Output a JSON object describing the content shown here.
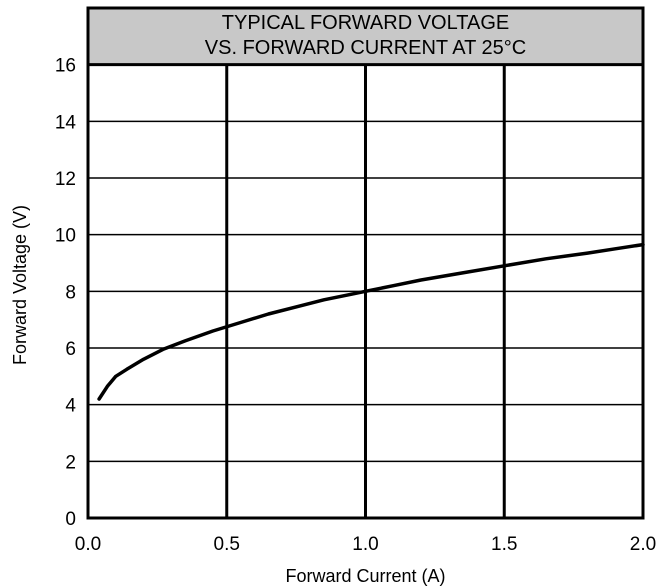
{
  "chart_data": {
    "type": "line",
    "title_lines": [
      "TYPICAL FORWARD VOLTAGE",
      "VS. FORWARD CURRENT AT 25°C"
    ],
    "xlabel": "Forward Current (A)",
    "ylabel": "Forward Voltage (V)",
    "xlim": [
      0.0,
      2.0
    ],
    "ylim": [
      0,
      18
    ],
    "x_ticks": [
      0.0,
      0.5,
      1.0,
      1.5,
      2.0
    ],
    "x_tick_labels": [
      "0.0",
      "0.5",
      "1.0",
      "1.5",
      "2.0"
    ],
    "y_ticks": [
      0,
      2,
      4,
      6,
      8,
      10,
      12,
      14,
      16
    ],
    "y_tick_labels": [
      "0",
      "2",
      "4",
      "6",
      "8",
      "10",
      "12",
      "14",
      "16"
    ],
    "grid": true,
    "title_band_color": "#c8c8c8",
    "line_color": "#000000",
    "series": [
      {
        "x": [
          0.04,
          0.07,
          0.1,
          0.14,
          0.2,
          0.27,
          0.35,
          0.45,
          0.55,
          0.65,
          0.75,
          0.85,
          0.95,
          1.0,
          1.1,
          1.2,
          1.35,
          1.5,
          1.65,
          1.8,
          1.9,
          2.0
        ],
        "y": [
          4.2,
          4.65,
          5.0,
          5.25,
          5.6,
          5.95,
          6.25,
          6.6,
          6.9,
          7.2,
          7.45,
          7.7,
          7.9,
          8.0,
          8.2,
          8.4,
          8.65,
          8.9,
          9.15,
          9.35,
          9.5,
          9.65
        ]
      }
    ]
  }
}
